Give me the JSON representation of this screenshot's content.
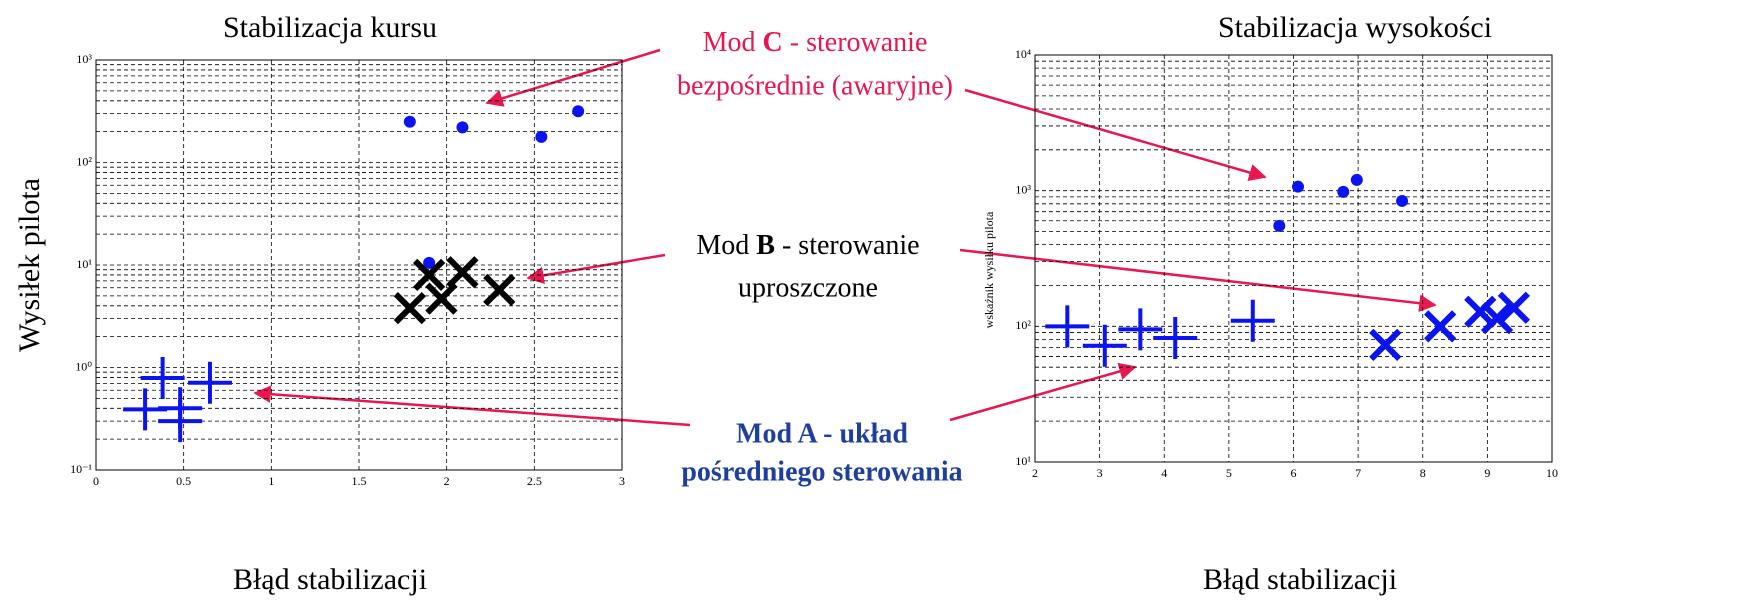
{
  "chart_data": [
    {
      "type": "scatter",
      "title": "Stabilizacja kursu",
      "x_label": "Błąd stabilizacji",
      "y_label": "Wysiłek pilota",
      "log_y": true,
      "grid": true,
      "xlim": [
        0,
        3
      ],
      "xticks": [
        0,
        0.5,
        1,
        1.5,
        2,
        2.5,
        3
      ],
      "ylim": [
        0.1,
        1000
      ],
      "yticks": [
        {
          "value": 0.1,
          "label": "10⁻¹"
        },
        {
          "value": 1,
          "label": "10⁰"
        },
        {
          "value": 10,
          "label": "10¹"
        },
        {
          "value": 100,
          "label": "10²"
        },
        {
          "value": 1000,
          "label": "10³"
        }
      ],
      "series": [
        {
          "marker": "o",
          "color": "#0a14f0",
          "x": [
            1.79,
            2.09,
            2.54,
            2.75,
            1.9
          ],
          "values": [
            250,
            220,
            178,
            316,
            10.5
          ]
        },
        {
          "marker": "x",
          "color": "#000000",
          "x": [
            1.79,
            1.9,
            1.97,
            2.09,
            2.3
          ],
          "values": [
            3.8,
            8,
            4.7,
            8.5,
            5.7
          ]
        },
        {
          "marker": "+",
          "color": "#0a14f0",
          "x": [
            0.38,
            0.28,
            0.65,
            0.48,
            0.48
          ],
          "values": [
            0.79,
            0.39,
            0.71,
            0.3,
            0.4
          ]
        }
      ]
    },
    {
      "type": "scatter",
      "title": "Stabilizacja wysokości",
      "x_label": "Błąd stabilizacji",
      "y_label": "wskaźnik wysiłku pilota",
      "log_y": true,
      "grid": true,
      "xlim": [
        2,
        10
      ],
      "xticks": [
        2,
        3,
        4,
        5,
        6,
        7,
        8,
        9,
        10
      ],
      "ylim": [
        10,
        10000
      ],
      "yticks": [
        {
          "value": 10,
          "label": "10¹"
        },
        {
          "value": 100,
          "label": "10²"
        },
        {
          "value": 1000,
          "label": "10³"
        },
        {
          "value": 10000,
          "label": "10⁴"
        }
      ],
      "series": [
        {
          "marker": "o",
          "color": "#0a14f0",
          "x": [
            5.78,
            6.07,
            6.77,
            6.98,
            7.68
          ],
          "values": [
            550,
            1070,
            980,
            1200,
            840
          ]
        },
        {
          "marker": "+",
          "color": "#0a14f0",
          "x": [
            2.5,
            3.08,
            3.63,
            4.17,
            5.37
          ],
          "values": [
            100,
            72,
            95,
            82,
            110
          ]
        },
        {
          "marker": "x",
          "color": "#0a14f0",
          "x": [
            7.42,
            8.27,
            8.89,
            9.15,
            9.41
          ],
          "values": [
            73,
            100,
            128,
            115,
            137
          ]
        }
      ]
    }
  ],
  "annotations": [
    {
      "lines": [
        [
          "Mod ",
          "C",
          " - sterowanie"
        ],
        [
          "bezpośrednie (awaryjne)"
        ]
      ]
    },
    {
      "lines": [
        [
          "Mod ",
          "B",
          " - sterowanie"
        ],
        [
          "uproszczone"
        ]
      ]
    },
    {
      "lines": [
        [
          "Mod A - układ"
        ],
        [
          "pośredniego sterowania"
        ]
      ]
    }
  ]
}
